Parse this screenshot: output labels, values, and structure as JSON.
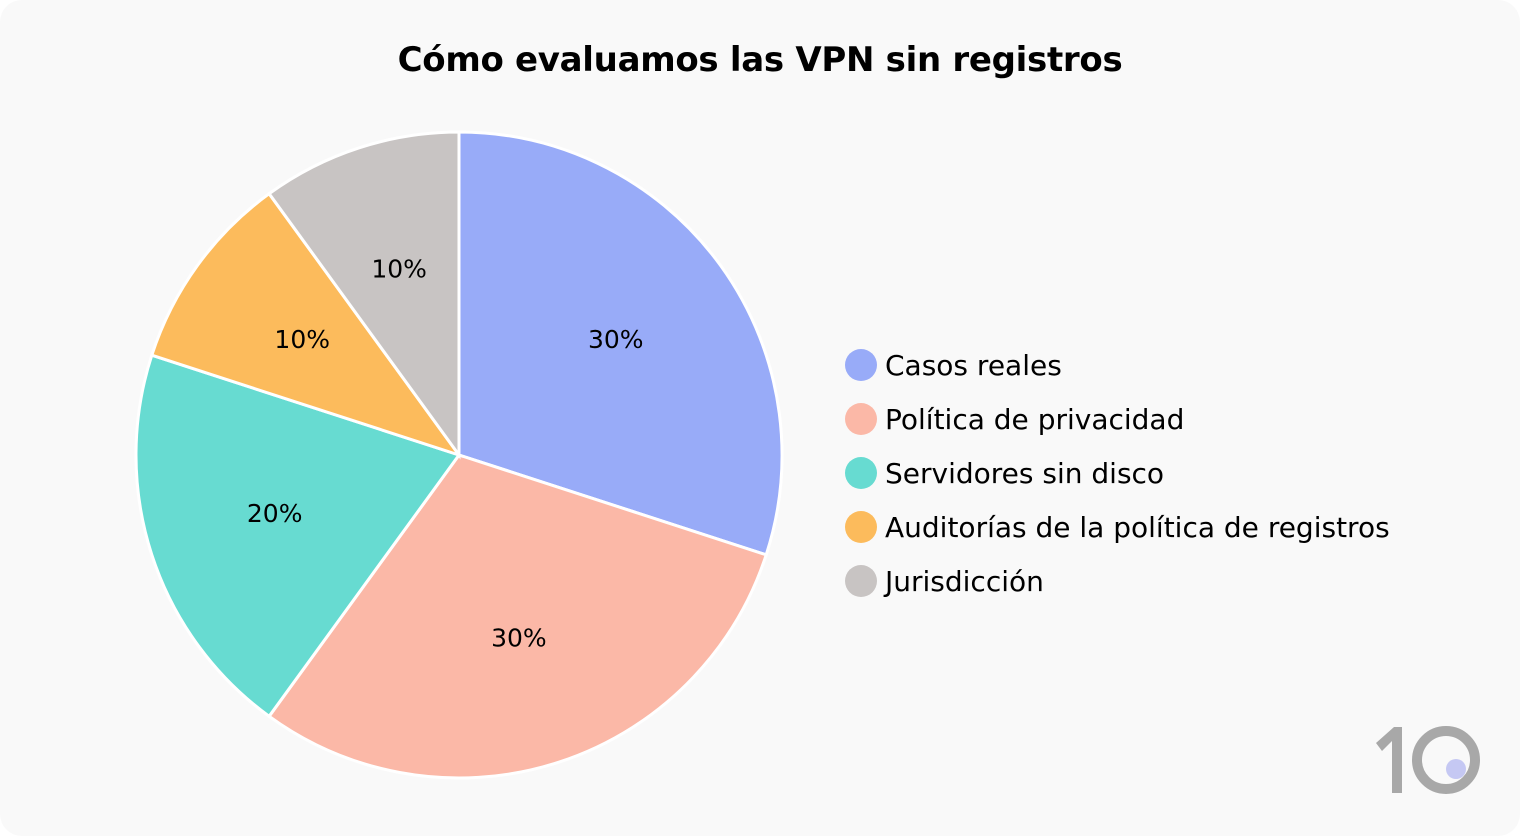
{
  "chart_data": {
    "type": "pie",
    "title": "Cómo evaluamos las VPN sin registros",
    "start_angle": "top",
    "direction": "clockwise",
    "legend_placement": "right",
    "slices": [
      {
        "name": "Casos reales",
        "value": 30,
        "label": "30%",
        "color": "#98abf8"
      },
      {
        "name": "Política de privacidad",
        "value": 30,
        "label": "30%",
        "color": "#fbb8a7"
      },
      {
        "name": "Servidores sin disco",
        "value": 20,
        "label": "20%",
        "color": "#67dbd1"
      },
      {
        "name": "Auditorías de la política de registros",
        "value": 10,
        "label": "10%",
        "color": "#fcbb5c"
      },
      {
        "name": "Jurisdicción",
        "value": 10,
        "label": "10%",
        "color": "#c8c4c3"
      }
    ]
  },
  "logo": {
    "text": "10",
    "colors": {
      "digits": "#a8a8a8",
      "dot": "#c5c8f3"
    }
  }
}
